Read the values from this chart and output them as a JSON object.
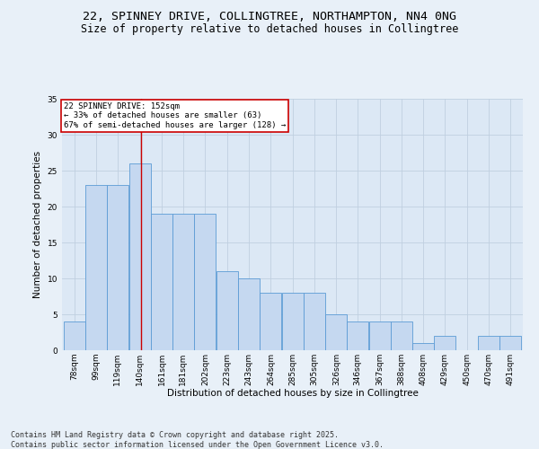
{
  "title_line1": "22, SPINNEY DRIVE, COLLINGTREE, NORTHAMPTON, NN4 0NG",
  "title_line2": "Size of property relative to detached houses in Collingtree",
  "xlabel": "Distribution of detached houses by size in Collingtree",
  "ylabel": "Number of detached properties",
  "bin_labels": [
    "78sqm",
    "99sqm",
    "119sqm",
    "140sqm",
    "161sqm",
    "181sqm",
    "202sqm",
    "223sqm",
    "243sqm",
    "264sqm",
    "285sqm",
    "305sqm",
    "326sqm",
    "346sqm",
    "367sqm",
    "388sqm",
    "408sqm",
    "429sqm",
    "450sqm",
    "470sqm",
    "491sqm"
  ],
  "bin_edges": [
    78,
    99,
    119,
    140,
    161,
    181,
    202,
    223,
    243,
    264,
    285,
    305,
    326,
    346,
    367,
    388,
    408,
    429,
    450,
    470,
    491
  ],
  "bar_heights": [
    4,
    23,
    23,
    26,
    19,
    19,
    19,
    11,
    10,
    8,
    8,
    8,
    5,
    4,
    4,
    4,
    1,
    2,
    0,
    2,
    2
  ],
  "bar_color": "#c5d8f0",
  "bar_edge_color": "#5b9bd5",
  "grid_color": "#c0cfe0",
  "bg_color": "#dce8f5",
  "fig_bg_color": "#e8f0f8",
  "annotation_text": "22 SPINNEY DRIVE: 152sqm\n← 33% of detached houses are smaller (63)\n67% of semi-detached houses are larger (128) →",
  "annotation_box_color": "#ffffff",
  "annotation_box_edge": "#cc0000",
  "vline_x": 152,
  "vline_color": "#cc0000",
  "ylim": [
    0,
    35
  ],
  "yticks": [
    0,
    5,
    10,
    15,
    20,
    25,
    30,
    35
  ],
  "footer": "Contains HM Land Registry data © Crown copyright and database right 2025.\nContains public sector information licensed under the Open Government Licence v3.0.",
  "title_fontsize": 9.5,
  "subtitle_fontsize": 8.5,
  "label_fontsize": 7.5,
  "tick_fontsize": 6.5,
  "footer_fontsize": 6.0,
  "annot_fontsize": 6.5
}
